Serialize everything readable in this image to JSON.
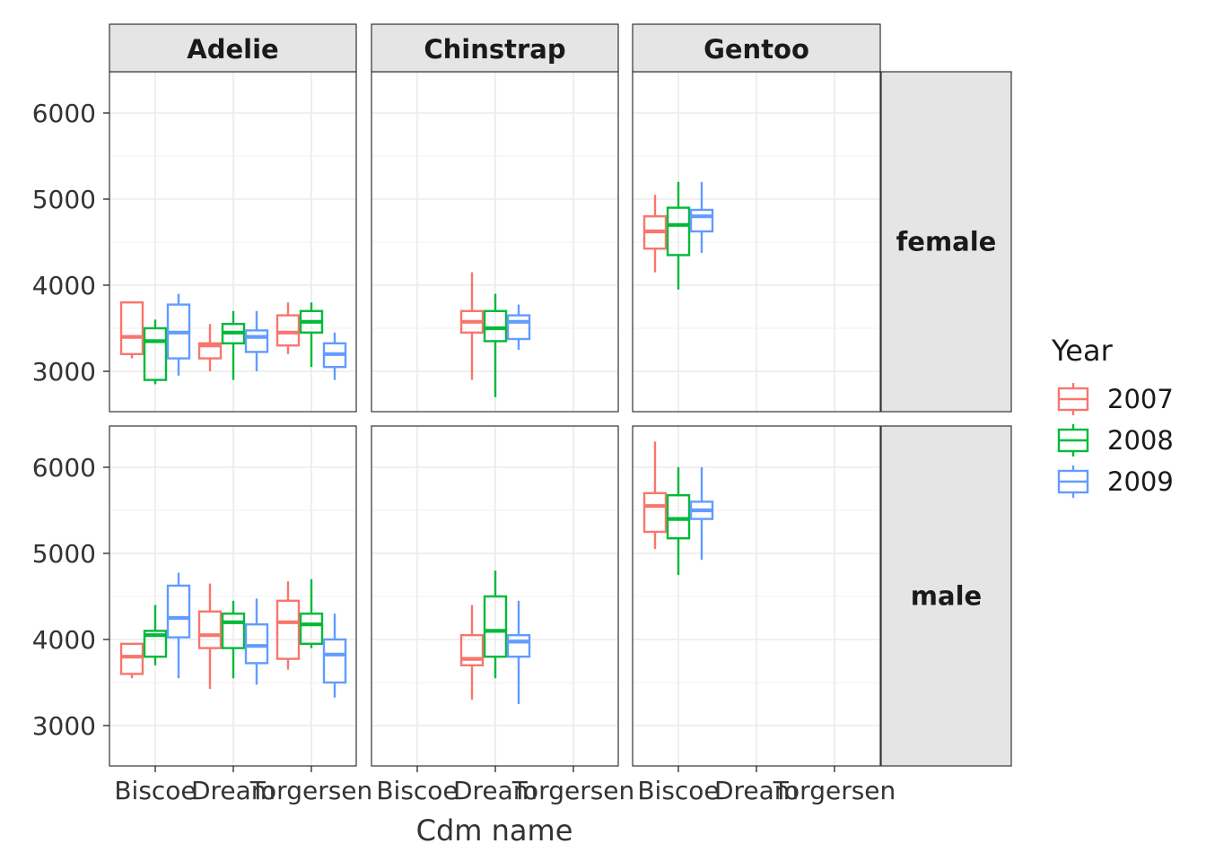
{
  "chart_data": {
    "type": "boxplot",
    "facet_cols": [
      "Adelie",
      "Chinstrap",
      "Gentoo"
    ],
    "facet_rows": [
      "female",
      "male"
    ],
    "categories": [
      "Biscoe",
      "Dream",
      "Torgersen"
    ],
    "xlabel": "Cdm name",
    "ylabel": "",
    "y_ticks": [
      3000,
      4000,
      5000,
      6000
    ],
    "ylim": [
      2550,
      6450
    ],
    "grid": true,
    "legend": {
      "title": "Year",
      "position": "right",
      "entries": [
        {
          "label": "2007",
          "color": "#F8766D"
        },
        {
          "label": "2008",
          "color": "#00BA38"
        },
        {
          "label": "2009",
          "color": "#619CFF"
        }
      ]
    },
    "boxes": [
      {
        "col": "Adelie",
        "row": "female",
        "x": "Biscoe",
        "year": "2007",
        "min": 3150,
        "q1": 3200,
        "median": 3400,
        "q3": 3800,
        "max": 3800
      },
      {
        "col": "Adelie",
        "row": "female",
        "x": "Biscoe",
        "year": "2008",
        "min": 2850,
        "q1": 2900,
        "median": 3350,
        "q3": 3500,
        "max": 3600
      },
      {
        "col": "Adelie",
        "row": "female",
        "x": "Biscoe",
        "year": "2009",
        "min": 2950,
        "q1": 3150,
        "median": 3450,
        "q3": 3775,
        "max": 3900
      },
      {
        "col": "Adelie",
        "row": "female",
        "x": "Dream",
        "year": "2007",
        "min": 3000,
        "q1": 3150,
        "median": 3300,
        "q3": 3325,
        "max": 3550
      },
      {
        "col": "Adelie",
        "row": "female",
        "x": "Dream",
        "year": "2008",
        "min": 2900,
        "q1": 3325,
        "median": 3450,
        "q3": 3550,
        "max": 3700
      },
      {
        "col": "Adelie",
        "row": "female",
        "x": "Dream",
        "year": "2009",
        "min": 3000,
        "q1": 3225,
        "median": 3400,
        "q3": 3475,
        "max": 3700
      },
      {
        "col": "Adelie",
        "row": "female",
        "x": "Torgersen",
        "year": "2007",
        "min": 3200,
        "q1": 3300,
        "median": 3450,
        "q3": 3650,
        "max": 3800
      },
      {
        "col": "Adelie",
        "row": "female",
        "x": "Torgersen",
        "year": "2008",
        "min": 3050,
        "q1": 3450,
        "median": 3575,
        "q3": 3700,
        "max": 3800
      },
      {
        "col": "Adelie",
        "row": "female",
        "x": "Torgersen",
        "year": "2009",
        "min": 2900,
        "q1": 3050,
        "median": 3200,
        "q3": 3325,
        "max": 3450
      },
      {
        "col": "Chinstrap",
        "row": "female",
        "x": "Dream",
        "year": "2007",
        "min": 2900,
        "q1": 3450,
        "median": 3575,
        "q3": 3700,
        "max": 4150
      },
      {
        "col": "Chinstrap",
        "row": "female",
        "x": "Dream",
        "year": "2008",
        "min": 2700,
        "q1": 3350,
        "median": 3500,
        "q3": 3700,
        "max": 3900
      },
      {
        "col": "Chinstrap",
        "row": "female",
        "x": "Dream",
        "year": "2009",
        "min": 3250,
        "q1": 3375,
        "median": 3575,
        "q3": 3650,
        "max": 3775
      },
      {
        "col": "Gentoo",
        "row": "female",
        "x": "Biscoe",
        "year": "2007",
        "min": 4150,
        "q1": 4425,
        "median": 4625,
        "q3": 4800,
        "max": 5050
      },
      {
        "col": "Gentoo",
        "row": "female",
        "x": "Biscoe",
        "year": "2008",
        "min": 3950,
        "q1": 4350,
        "median": 4700,
        "q3": 4900,
        "max": 5200
      },
      {
        "col": "Gentoo",
        "row": "female",
        "x": "Biscoe",
        "year": "2009",
        "min": 4375,
        "q1": 4625,
        "median": 4800,
        "q3": 4875,
        "max": 5200
      },
      {
        "col": "Adelie",
        "row": "male",
        "x": "Biscoe",
        "year": "2007",
        "min": 3550,
        "q1": 3600,
        "median": 3800,
        "q3": 3950,
        "max": 3950
      },
      {
        "col": "Adelie",
        "row": "male",
        "x": "Biscoe",
        "year": "2008",
        "min": 3700,
        "q1": 3800,
        "median": 4050,
        "q3": 4100,
        "max": 4400
      },
      {
        "col": "Adelie",
        "row": "male",
        "x": "Biscoe",
        "year": "2009",
        "min": 3550,
        "q1": 4025,
        "median": 4250,
        "q3": 4625,
        "max": 4775
      },
      {
        "col": "Adelie",
        "row": "male",
        "x": "Dream",
        "year": "2007",
        "min": 3425,
        "q1": 3900,
        "median": 4050,
        "q3": 4325,
        "max": 4650
      },
      {
        "col": "Adelie",
        "row": "male",
        "x": "Dream",
        "year": "2008",
        "min": 3550,
        "q1": 3900,
        "median": 4200,
        "q3": 4300,
        "max": 4450
      },
      {
        "col": "Adelie",
        "row": "male",
        "x": "Dream",
        "year": "2009",
        "min": 3475,
        "q1": 3725,
        "median": 3925,
        "q3": 4175,
        "max": 4475
      },
      {
        "col": "Adelie",
        "row": "male",
        "x": "Torgersen",
        "year": "2007",
        "min": 3650,
        "q1": 3775,
        "median": 4200,
        "q3": 4450,
        "max": 4675
      },
      {
        "col": "Adelie",
        "row": "male",
        "x": "Torgersen",
        "year": "2008",
        "min": 3900,
        "q1": 3950,
        "median": 4175,
        "q3": 4300,
        "max": 4700
      },
      {
        "col": "Adelie",
        "row": "male",
        "x": "Torgersen",
        "year": "2009",
        "min": 3325,
        "q1": 3500,
        "median": 3825,
        "q3": 4000,
        "max": 4300
      },
      {
        "col": "Chinstrap",
        "row": "male",
        "x": "Dream",
        "year": "2007",
        "min": 3300,
        "q1": 3700,
        "median": 3775,
        "q3": 4050,
        "max": 4400
      },
      {
        "col": "Chinstrap",
        "row": "male",
        "x": "Dream",
        "year": "2008",
        "min": 3550,
        "q1": 3800,
        "median": 4100,
        "q3": 4500,
        "max": 4800
      },
      {
        "col": "Chinstrap",
        "row": "male",
        "x": "Dream",
        "year": "2009",
        "min": 3250,
        "q1": 3800,
        "median": 3975,
        "q3": 4050,
        "max": 4450
      },
      {
        "col": "Gentoo",
        "row": "male",
        "x": "Biscoe",
        "year": "2007",
        "min": 5050,
        "q1": 5250,
        "median": 5550,
        "q3": 5700,
        "max": 6300
      },
      {
        "col": "Gentoo",
        "row": "male",
        "x": "Biscoe",
        "year": "2008",
        "min": 4750,
        "q1": 5175,
        "median": 5400,
        "q3": 5675,
        "max": 6000
      },
      {
        "col": "Gentoo",
        "row": "male",
        "x": "Biscoe",
        "year": "2009",
        "min": 4925,
        "q1": 5400,
        "median": 5500,
        "q3": 5600,
        "max": 6000
      }
    ]
  }
}
